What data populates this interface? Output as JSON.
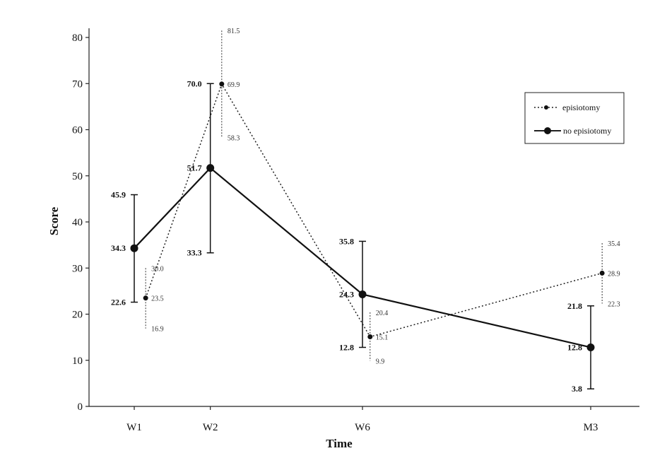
{
  "chart_data": {
    "type": "line",
    "xlabel": "Time",
    "ylabel": "Score",
    "categories": [
      "W1",
      "W2",
      "W6",
      "M3"
    ],
    "ylim": [
      0,
      80
    ],
    "yticks": [
      0,
      10,
      20,
      30,
      40,
      50,
      60,
      70,
      80
    ],
    "legend_position": "top-right",
    "series": [
      {
        "name": "episiotomy",
        "line_style": "dotted",
        "marker": "small-dot",
        "x": [
          0.15,
          1.15,
          3.1,
          6.15
        ],
        "values": [
          23.5,
          69.9,
          15.1,
          28.9
        ],
        "upper": [
          30.0,
          81.5,
          20.4,
          35.4
        ],
        "lower": [
          16.9,
          58.3,
          9.9,
          22.3
        ],
        "value_labels": [
          "23.5",
          "69.9",
          "15.1",
          "28.9"
        ],
        "upper_labels": [
          "30.0",
          "81.5",
          "20.4",
          "35.4"
        ],
        "lower_labels": [
          "16.9",
          "58.3",
          "9.9",
          "22.3"
        ]
      },
      {
        "name": "no episiotomy",
        "line_style": "solid",
        "marker": "large-dot",
        "x": [
          0,
          1,
          3,
          6
        ],
        "values": [
          34.3,
          51.7,
          24.3,
          12.8
        ],
        "upper": [
          45.9,
          70.0,
          35.8,
          21.8
        ],
        "lower": [
          22.6,
          33.3,
          12.8,
          3.8
        ],
        "value_labels": [
          "34.3",
          "51.7",
          "24.3",
          "12.8"
        ],
        "upper_labels": [
          "45.9",
          "70.0",
          "35.8",
          "21.8"
        ],
        "lower_labels": [
          "22.6",
          "33.3",
          "12.8",
          "3.8"
        ]
      }
    ]
  }
}
